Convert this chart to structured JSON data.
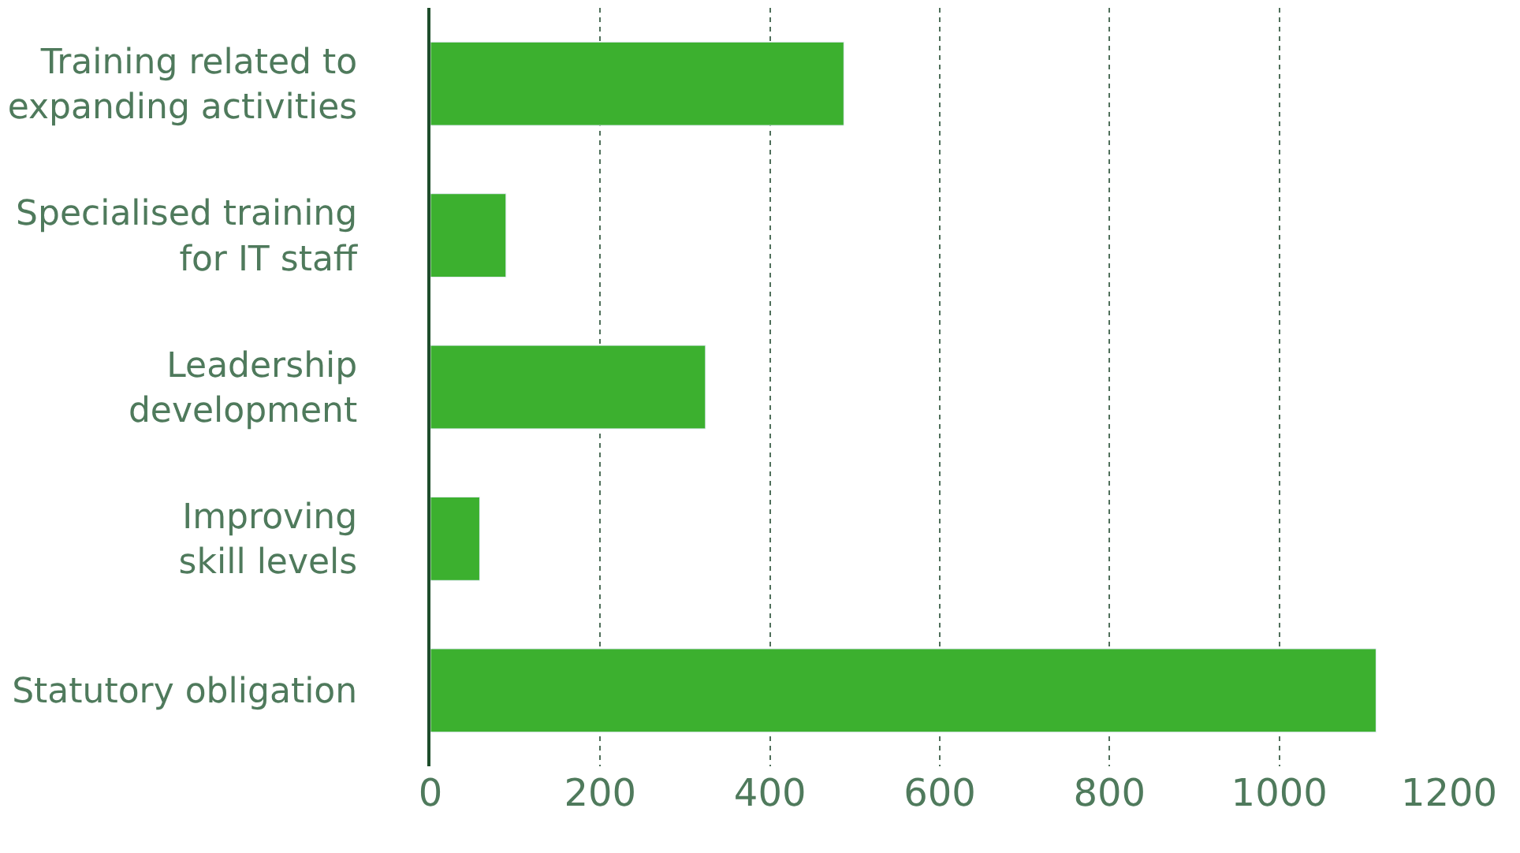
{
  "chart_data": {
    "type": "bar",
    "orientation": "horizontal",
    "categories": [
      "Training related to\nexpanding activities",
      "Specialised training\nfor IT staff",
      "Leadership\ndevelopment",
      "Improving\nskill levels",
      "Statutory obligation"
    ],
    "values": [
      487,
      89,
      324,
      58,
      1114
    ],
    "color": "#3cb02f",
    "xlim": [
      0,
      1200
    ],
    "xticks": [
      0,
      200,
      400,
      600,
      800,
      1000,
      1200
    ],
    "grid": "x"
  }
}
